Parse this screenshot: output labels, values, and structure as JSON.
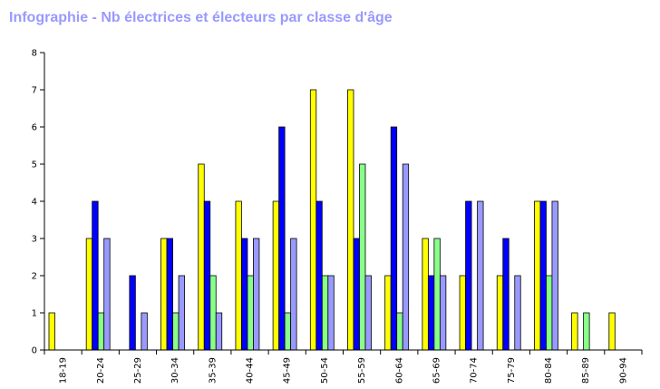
{
  "title": "Infographie - Nb électrices et électeurs par classe d'âge",
  "chart_data": {
    "type": "bar",
    "title": "Infographie - Nb électrices et électeurs par classe d'âge",
    "xlabel": "",
    "ylabel": "",
    "ylim": [
      0,
      8
    ],
    "yticks": [
      "0",
      "1",
      "2",
      "3",
      "4",
      "5",
      "6",
      "7",
      "8"
    ],
    "grid": false,
    "legend": "none",
    "categories": [
      "18-19",
      "20-24",
      "25-29",
      "30-34",
      "35-39",
      "40-44",
      "45-49",
      "50-54",
      "55-59",
      "60-64",
      "65-69",
      "70-74",
      "75-79",
      "80-84",
      "85-89",
      "90-94"
    ],
    "series": [
      {
        "color": "#ffff00",
        "values": [
          1,
          3,
          0,
          3,
          5,
          4,
          4,
          7,
          7,
          2,
          3,
          2,
          2,
          4,
          1,
          1
        ]
      },
      {
        "color": "#0000ff",
        "values": [
          0,
          4,
          2,
          3,
          4,
          3,
          6,
          4,
          3,
          6,
          2,
          4,
          3,
          4,
          0,
          0
        ]
      },
      {
        "color": "#88ff88",
        "values": [
          0,
          1,
          0,
          1,
          2,
          2,
          1,
          2,
          5,
          1,
          3,
          0,
          0,
          2,
          1,
          0
        ]
      },
      {
        "color": "#9999ff",
        "values": [
          0,
          3,
          1,
          2,
          1,
          3,
          3,
          2,
          2,
          5,
          2,
          4,
          2,
          4,
          0,
          0
        ]
      }
    ]
  }
}
